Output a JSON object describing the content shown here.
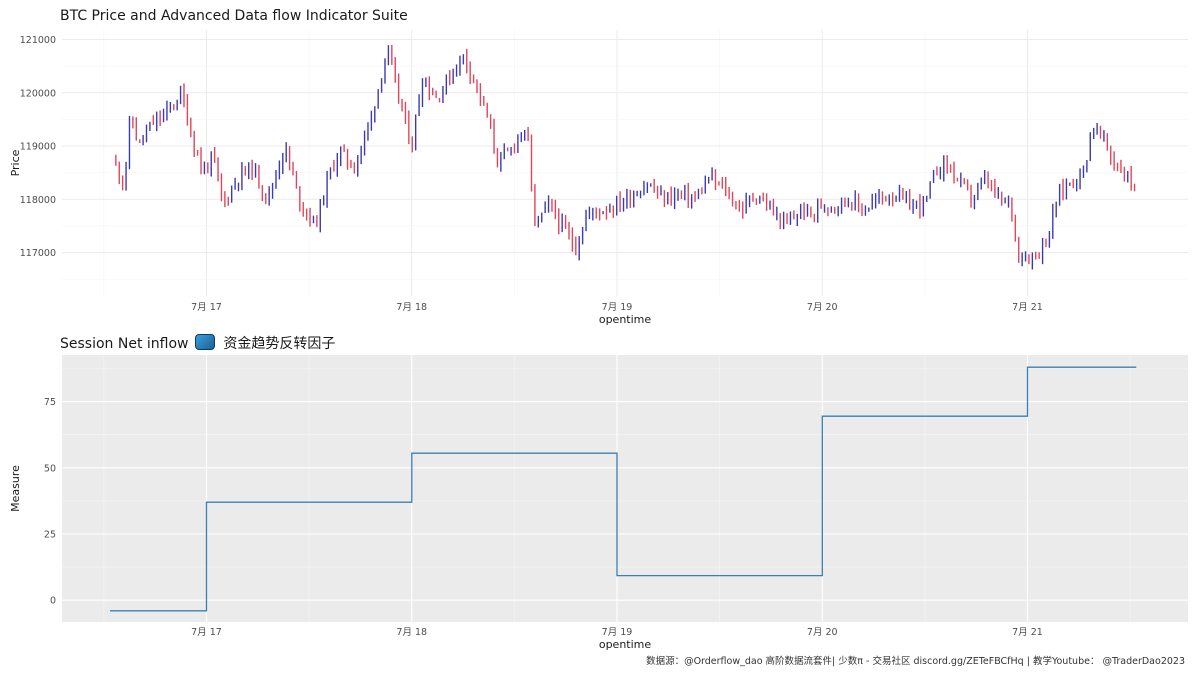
{
  "titles": {
    "top": "BTC Price and Advanced Data flow Indicator Suite",
    "bottom": "Session Net inflow",
    "bottom_suffix": "资金趋势反转因子"
  },
  "source_note": "数据源：@Orderflow_dao 高阶数据流套件| 少数π - 交易社区 discord.gg/ZETeFBCfHq | 教学Youtube： @TraderDao2023",
  "chart_data": [
    {
      "type": "candlestick",
      "title": "BTC Price and Advanced Data flow Indicator Suite",
      "xlabel": "opentime",
      "ylabel": "Price",
      "x_ticks": [
        "7月 17",
        "7月 18",
        "7月 19",
        "7月 20",
        "7月 21"
      ],
      "x_range_days": [
        16.53,
        21.53
      ],
      "y_ticks": [
        117000,
        118000,
        119000,
        120000,
        121000
      ],
      "ylim": [
        116300,
        121100
      ],
      "up_color": "#3b3bb0",
      "down_color": "#e0455a",
      "price_path": [
        [
          16.55,
          118700
        ],
        [
          16.6,
          118300
        ],
        [
          16.63,
          119600
        ],
        [
          16.67,
          119000
        ],
        [
          16.73,
          119400
        ],
        [
          16.8,
          119600
        ],
        [
          16.88,
          120000
        ],
        [
          16.92,
          119300
        ],
        [
          16.98,
          118500
        ],
        [
          17.03,
          118800
        ],
        [
          17.08,
          117900
        ],
        [
          17.15,
          118400
        ],
        [
          17.22,
          118600
        ],
        [
          17.3,
          118000
        ],
        [
          17.38,
          119000
        ],
        [
          17.45,
          118000
        ],
        [
          17.53,
          117500
        ],
        [
          17.6,
          118500
        ],
        [
          17.65,
          118900
        ],
        [
          17.72,
          118600
        ],
        [
          17.8,
          119500
        ],
        [
          17.88,
          120800
        ],
        [
          17.95,
          119700
        ],
        [
          18.0,
          119000
        ],
        [
          18.05,
          120300
        ],
        [
          18.12,
          119900
        ],
        [
          18.2,
          120400
        ],
        [
          18.25,
          120700
        ],
        [
          18.3,
          120300
        ],
        [
          18.37,
          119500
        ],
        [
          18.42,
          118700
        ],
        [
          18.48,
          118900
        ],
        [
          18.53,
          119300
        ],
        [
          18.57,
          119000
        ],
        [
          18.6,
          117500
        ],
        [
          18.67,
          117900
        ],
        [
          18.73,
          117500
        ],
        [
          18.8,
          117100
        ],
        [
          18.85,
          117700
        ],
        [
          18.92,
          117800
        ],
        [
          19.0,
          117900
        ],
        [
          19.08,
          118100
        ],
        [
          19.15,
          118300
        ],
        [
          19.22,
          118000
        ],
        [
          19.3,
          118100
        ],
        [
          19.38,
          118000
        ],
        [
          19.45,
          118400
        ],
        [
          19.52,
          118200
        ],
        [
          19.6,
          117800
        ],
        [
          19.68,
          118100
        ],
        [
          19.75,
          117800
        ],
        [
          19.82,
          117500
        ],
        [
          19.9,
          117800
        ],
        [
          19.95,
          117700
        ],
        [
          20.0,
          117900
        ],
        [
          20.07,
          117900
        ],
        [
          20.13,
          118000
        ],
        [
          20.2,
          117800
        ],
        [
          20.27,
          118000
        ],
        [
          20.35,
          118100
        ],
        [
          20.42,
          117900
        ],
        [
          20.5,
          117900
        ],
        [
          20.55,
          118500
        ],
        [
          20.6,
          118700
        ],
        [
          20.67,
          118300
        ],
        [
          20.73,
          118000
        ],
        [
          20.8,
          118400
        ],
        [
          20.85,
          118000
        ],
        [
          20.92,
          117900
        ],
        [
          20.95,
          117000
        ],
        [
          21.0,
          116900
        ],
        [
          21.05,
          117000
        ],
        [
          21.1,
          117300
        ],
        [
          21.15,
          118100
        ],
        [
          21.2,
          118300
        ],
        [
          21.27,
          118500
        ],
        [
          21.32,
          119400
        ],
        [
          21.37,
          119100
        ],
        [
          21.42,
          118700
        ],
        [
          21.47,
          118500
        ],
        [
          21.53,
          118200
        ]
      ]
    },
    {
      "type": "step-line",
      "title": "Session Net inflow 资金趋势反转因子",
      "xlabel": "opentime",
      "ylabel": "Measure",
      "x_ticks": [
        "7月 17",
        "7月 18",
        "7月 19",
        "7月 20",
        "7月 21"
      ],
      "y_ticks": [
        0,
        25,
        50,
        75
      ],
      "ylim": [
        -8,
        92
      ],
      "line_color": "#3a7fb5",
      "steps": [
        {
          "start": 16.53,
          "end": 17.0,
          "value": -4
        },
        {
          "start": 17.0,
          "end": 18.0,
          "value": 37
        },
        {
          "start": 18.0,
          "end": 19.0,
          "value": 55.5
        },
        {
          "start": 19.0,
          "end": 20.0,
          "value": 9.3
        },
        {
          "start": 20.0,
          "end": 21.0,
          "value": 69.5
        },
        {
          "start": 21.0,
          "end": 21.53,
          "value": 88
        }
      ]
    }
  ]
}
